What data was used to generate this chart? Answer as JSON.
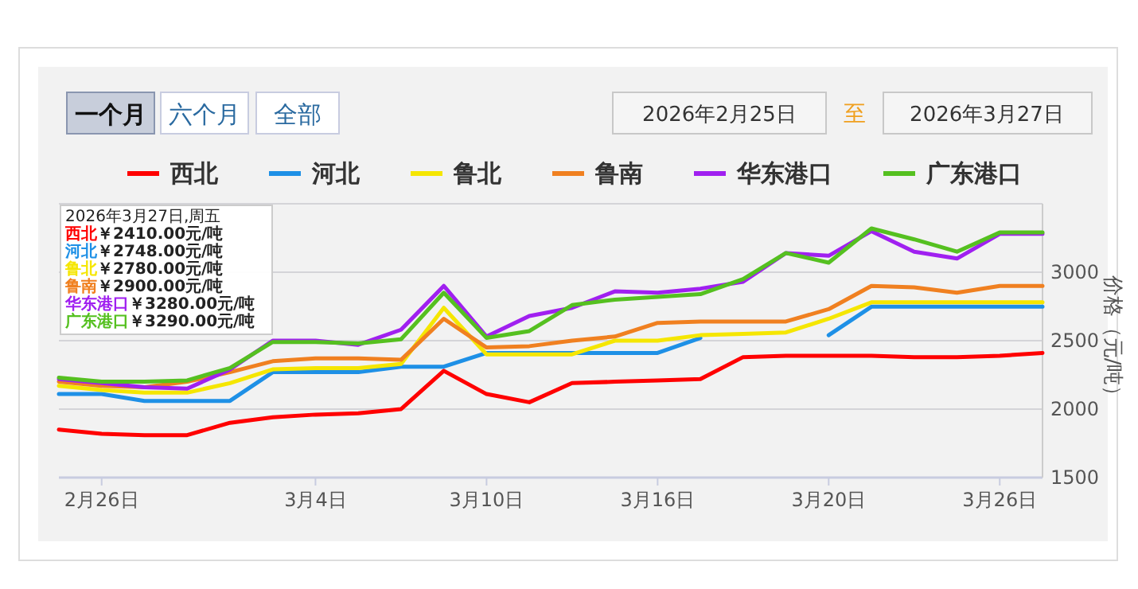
{
  "chart_data": {
    "type": "line",
    "categories": [
      null,
      "2月26日",
      null,
      null,
      null,
      null,
      "3月4日",
      null,
      null,
      null,
      "3月10日",
      null,
      null,
      null,
      "3月16日",
      null,
      null,
      null,
      "3月20日",
      null,
      null,
      null,
      "3月26日",
      null
    ],
    "ylabel": "价格（元/吨）",
    "ylim": [
      1500,
      3500
    ],
    "yticks": [
      1500,
      2000,
      2500,
      3000
    ],
    "grid": "y",
    "legend": "top",
    "marker": "none",
    "line_style": "solid",
    "series": [
      {
        "name": "西北",
        "color": "#ff0000",
        "values": [
          1850,
          1820,
          1810,
          1810,
          1900,
          1940,
          1960,
          1970,
          2000,
          2280,
          2110,
          2050,
          2190,
          2200,
          2210,
          2220,
          2380,
          2390,
          2390,
          2390,
          2380,
          2380,
          2390,
          2410
        ]
      },
      {
        "name": "河北",
        "color": "#1e90e6",
        "values": [
          2110,
          2110,
          2060,
          2060,
          2060,
          2270,
          2270,
          2270,
          2310,
          2310,
          2410,
          2410,
          2410,
          2410,
          2410,
          2520,
          null,
          null,
          2540,
          2748,
          2748,
          2748,
          2748,
          2748
        ]
      },
      {
        "name": "鲁北",
        "color": "#f5e600",
        "values": [
          2170,
          2140,
          2120,
          2120,
          2190,
          2290,
          2300,
          2300,
          2330,
          2740,
          2400,
          2400,
          2400,
          2500,
          2500,
          2540,
          2550,
          2560,
          2660,
          2780,
          2780,
          2780,
          2780,
          2780
        ]
      },
      {
        "name": "鲁南",
        "color": "#f08020",
        "values": [
          2200,
          2170,
          2160,
          2200,
          2270,
          2350,
          2370,
          2370,
          2360,
          2660,
          2450,
          2460,
          2500,
          2530,
          2630,
          2640,
          2640,
          2640,
          2730,
          2900,
          2890,
          2850,
          2900,
          2900
        ]
      },
      {
        "name": "华东港口",
        "color": "#a020f0",
        "values": [
          2220,
          2190,
          2160,
          2150,
          2290,
          2500,
          2500,
          2470,
          2580,
          2900,
          2530,
          2680,
          2740,
          2860,
          2850,
          2880,
          2930,
          3140,
          3120,
          3300,
          3150,
          3100,
          3280,
          3280
        ]
      },
      {
        "name": "广东港口",
        "color": "#55c020",
        "values": [
          2230,
          2200,
          2200,
          2210,
          2300,
          2490,
          2490,
          2480,
          2510,
          2850,
          2520,
          2570,
          2760,
          2800,
          2820,
          2840,
          2950,
          3140,
          3070,
          3320,
          3240,
          3150,
          3290,
          3290
        ]
      }
    ],
    "annotations": [
      "一个月",
      "六个月",
      "全部",
      "2026年2月25日",
      "至",
      "2026年3月27日",
      "2026年3月27日,周五",
      "西北￥2410.00元/吨",
      "河北￥2748.00元/吨",
      "鲁北￥2780.00元/吨",
      "鲁南￥2900.00元/吨",
      "华东港口￥3280.00元/吨",
      "广东港口￥3290.00元/吨"
    ]
  }
}
